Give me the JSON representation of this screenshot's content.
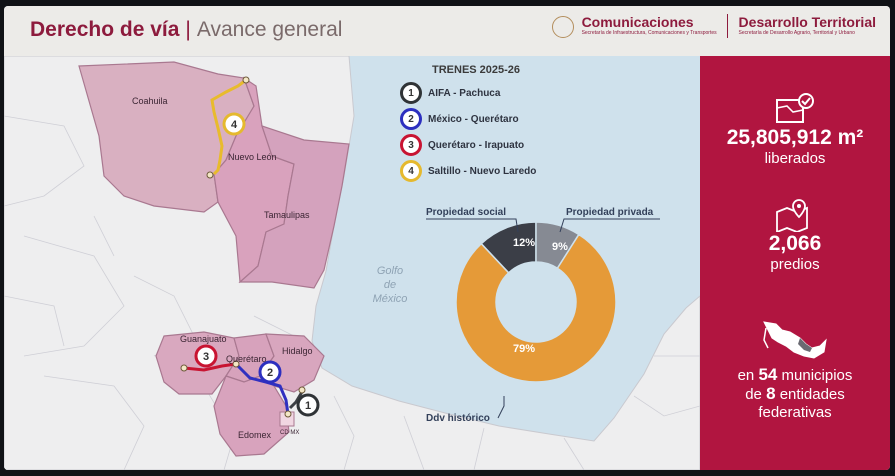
{
  "header": {
    "title_bold": "Derecho de vía",
    "title_sep": "|",
    "title_rest": "Avance general",
    "logo_left": "Comunicaciones",
    "logo_left_tag": "Secretaría de Infraestructura, Comunicaciones y Transportes",
    "logo_right": "Desarrollo Territorial",
    "logo_right_tag": "Secretaría de Desarrollo Agrario, Territorial y Urbano"
  },
  "legend": {
    "title": "TRENES 2025-26",
    "items": [
      {
        "num": "1",
        "label": "AIFA - Pachuca",
        "color": "#2f3336"
      },
      {
        "num": "2",
        "label": "México - Querétaro",
        "color": "#2c2fbf"
      },
      {
        "num": "3",
        "label": "Querétaro - Irapuato",
        "color": "#c81432"
      },
      {
        "num": "4",
        "label": "Saltillo - Nuevo Laredo",
        "color": "#e5b92e"
      }
    ]
  },
  "map": {
    "states": [
      "Coahuila",
      "Nuevo León",
      "Tamaulipas",
      "Guanajuato",
      "Querétaro",
      "Hidalgo",
      "Edomex"
    ],
    "city": "CD MX",
    "gulf": [
      "Golfo",
      "de",
      "México"
    ],
    "route_badges": [
      "1",
      "2",
      "3",
      "4"
    ]
  },
  "chart_data": {
    "type": "pie",
    "donut": true,
    "title": "",
    "categories": [
      "Propiedad social",
      "Propiedad privada",
      "Ddv histórico"
    ],
    "values": [
      12,
      9,
      79
    ],
    "value_labels": [
      "12%",
      "9%",
      "79%"
    ],
    "colors": [
      "#3b3e47",
      "#868a93",
      "#e59a38"
    ],
    "legend": "callouts"
  },
  "stats": [
    {
      "value": "25,805,912 m²",
      "label": "liberados",
      "icon": "map-check-icon"
    },
    {
      "value": "2,066",
      "label": "predios",
      "icon": "map-pin-icon"
    },
    {
      "line1_pre": "en",
      "line1_num": "54",
      "line1_post": "municipios",
      "line2_pre": "de",
      "line2_num": "8",
      "line2_post": "entidades",
      "line3": "federativas",
      "icon": "mexico-map-icon"
    }
  ]
}
